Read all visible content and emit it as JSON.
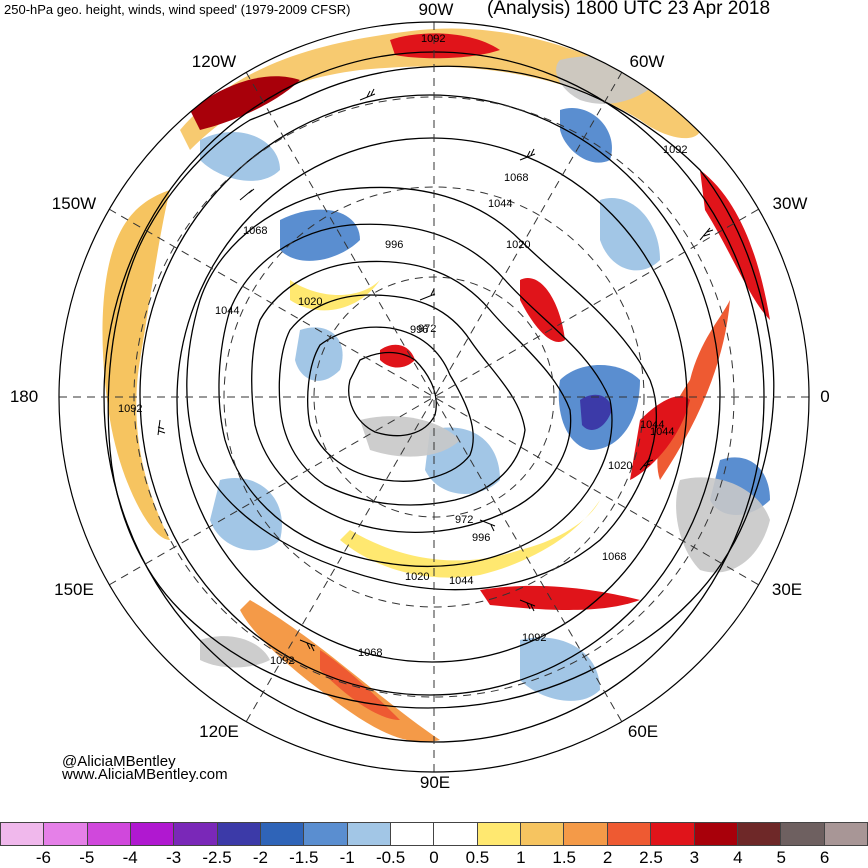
{
  "header": {
    "left_title": "250-hPa geo. height, winds, wind speed' (1979-2009 CFSR)",
    "right_title": "(Analysis) 1800 UTC 23 Apr 2018"
  },
  "longitude_labels": {
    "n90w": "90W",
    "n60w": "60W",
    "n120w": "120W",
    "n150w": "150W",
    "n30w": "30W",
    "n180": "180",
    "n0": "0",
    "n150e": "150E",
    "n30e": "30E",
    "n120e": "120E",
    "n60e": "60E",
    "n90e": "90E"
  },
  "contour_labels": [
    "1092",
    "1092",
    "1068",
    "1044",
    "1020",
    "996",
    "1068",
    "1044",
    "1020",
    "996",
    "972",
    "1092",
    "1020",
    "1044",
    "972",
    "996",
    "1020",
    "1044",
    "1068",
    "1092",
    "1068",
    "1092",
    "1044"
  ],
  "credits": {
    "handle": "@AliciaMBentley",
    "website": "www.AliciaMBentley.com"
  },
  "colorbar": {
    "colors": [
      "#f0b8ec",
      "#e580e8",
      "#d048dc",
      "#b018d0",
      "#7a28b8",
      "#3c3aa8",
      "#2f64b8",
      "#5a8ed0",
      "#a2c6e6",
      "#ffffff",
      "#ffffff",
      "#ffe870",
      "#f6c460",
      "#f49a48",
      "#ee5a32",
      "#e0141a",
      "#a8000a",
      "#6e2828",
      "#6e6060",
      "#a89696"
    ],
    "ticks": [
      "-6",
      "-5",
      "-4",
      "-3",
      "-2.5",
      "-2",
      "-1.5",
      "-1",
      "-0.5",
      "0",
      "0.5",
      "1",
      "1.5",
      "2",
      "2.5",
      "3",
      "4",
      "5",
      "6"
    ]
  }
}
